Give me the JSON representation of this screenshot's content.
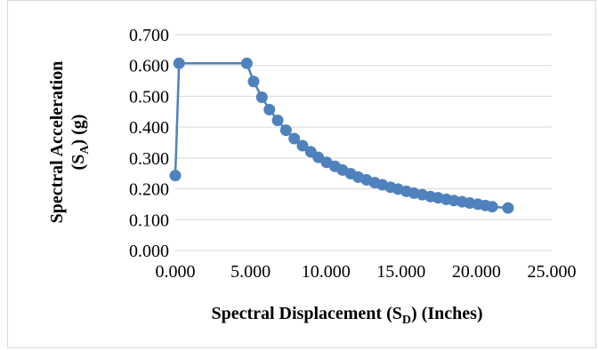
{
  "chart_data": {
    "type": "scatter",
    "xlabel_main": "Spectral Displacement (S",
    "xlabel_sub": "D",
    "xlabel_tail": ") (Inches)",
    "ylabel_line1": "Spectral Acceleration",
    "ylabel_main": "(S",
    "ylabel_sub": "A",
    "ylabel_tail": ") (g)",
    "xlim": [
      0,
      25
    ],
    "ylim": [
      0,
      0.7
    ],
    "xticks": [
      "0.000",
      "5.000",
      "10.000",
      "15.000",
      "20.000",
      "25.000"
    ],
    "xtick_values": [
      0,
      5,
      10,
      15,
      20,
      25
    ],
    "yticks": [
      "0.000",
      "0.100",
      "0.200",
      "0.300",
      "0.400",
      "0.500",
      "0.600",
      "0.700"
    ],
    "ytick_values": [
      0,
      0.1,
      0.2,
      0.3,
      0.4,
      0.5,
      0.6,
      0.7
    ],
    "grid": true,
    "series": [
      {
        "color": "#4F81BD",
        "x": [
          0.0,
          0.25,
          4.75,
          5.2,
          5.75,
          6.25,
          6.8,
          7.35,
          7.9,
          8.45,
          9.0,
          9.5,
          10.05,
          10.6,
          11.1,
          11.65,
          12.15,
          12.7,
          13.25,
          13.75,
          14.3,
          14.8,
          15.35,
          15.85,
          16.4,
          16.95,
          17.45,
          18.0,
          18.5,
          19.05,
          19.55,
          20.1,
          20.6,
          21.05,
          22.1
        ],
        "y": [
          0.243,
          0.607,
          0.607,
          0.548,
          0.497,
          0.457,
          0.422,
          0.39,
          0.363,
          0.34,
          0.32,
          0.302,
          0.286,
          0.273,
          0.261,
          0.249,
          0.238,
          0.229,
          0.22,
          0.213,
          0.205,
          0.199,
          0.192,
          0.186,
          0.181,
          0.175,
          0.171,
          0.166,
          0.162,
          0.158,
          0.154,
          0.15,
          0.146,
          0.142,
          0.138
        ]
      }
    ]
  }
}
